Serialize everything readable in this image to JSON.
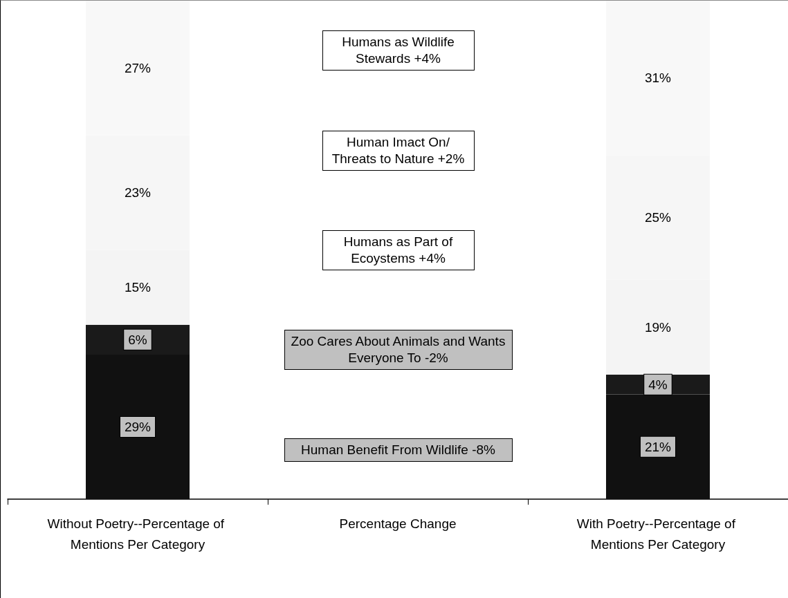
{
  "chart_data": {
    "type": "bar",
    "stacked": true,
    "categories": [
      "Without Poetry--Percentage of Mentions Per Category",
      "Percentage Change",
      "With Poetry--Percentage of Mentions Per Category"
    ],
    "series": [
      {
        "color": "#111111",
        "values": [
          29,
          null,
          21
        ],
        "value_labels": [
          "29%",
          null,
          "21%"
        ]
      },
      {
        "color": "#1a1a1a",
        "values": [
          6,
          null,
          4
        ],
        "value_labels": [
          "6%",
          null,
          "4%"
        ]
      },
      {
        "color": "#f4f4f4",
        "values": [
          15,
          null,
          19
        ],
        "value_labels": [
          "15%",
          null,
          "19%"
        ]
      },
      {
        "color": "#f6f6f6",
        "values": [
          23,
          null,
          25
        ],
        "value_labels": [
          "23%",
          null,
          "25%"
        ]
      },
      {
        "color": "#f8f8f8",
        "values": [
          27,
          null,
          31
        ],
        "value_labels": [
          "27%",
          null,
          "31%"
        ]
      }
    ],
    "annotations": [
      "Humans as Wildlife Stewards +4%",
      "Human Imact On/ Threats to Nature +2%",
      "Humans as Part of Ecoystems +4%",
      "Zoo Cares About Animals and Wants Everyone To -2%",
      "Human Benefit From Wildlife -8%"
    ]
  }
}
